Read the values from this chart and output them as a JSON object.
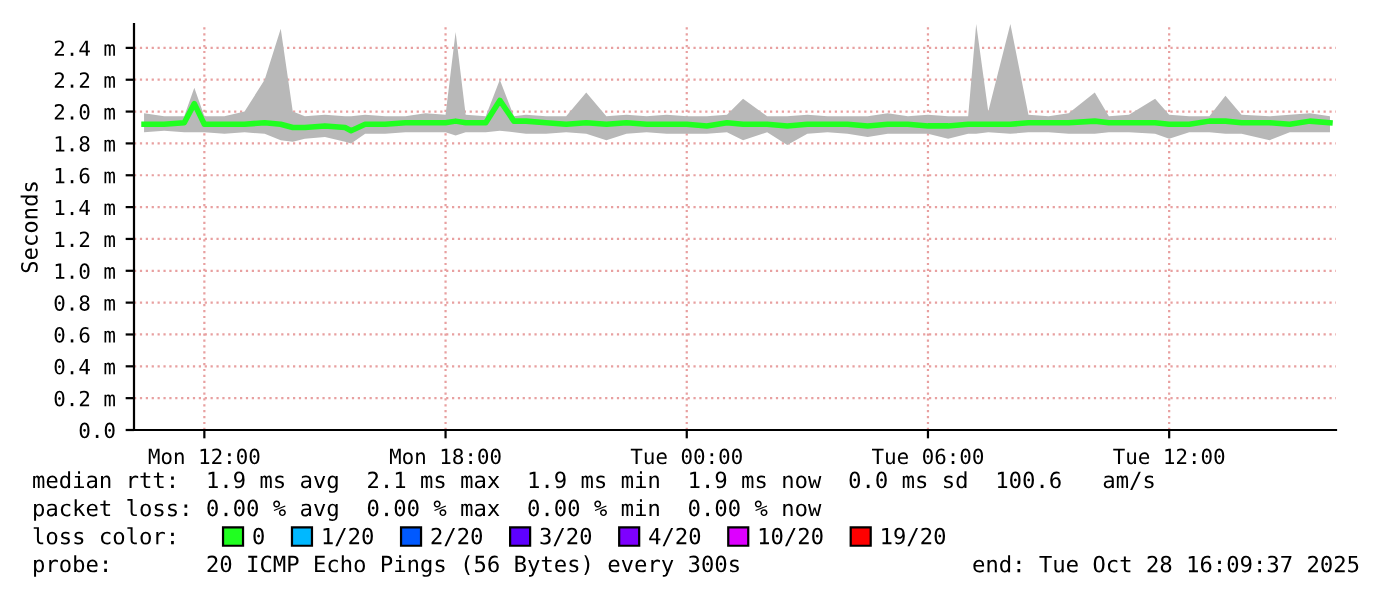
{
  "chart_data": {
    "type": "line",
    "ylabel": "Seconds",
    "x": [
      "2025-10-27T10:30",
      "2025-10-27T11:00",
      "2025-10-27T11:30",
      "2025-10-27T11:45",
      "2025-10-27T12:00",
      "2025-10-27T12:30",
      "2025-10-27T13:00",
      "2025-10-27T13:30",
      "2025-10-27T13:54",
      "2025-10-27T14:12",
      "2025-10-27T14:30",
      "2025-10-27T15:00",
      "2025-10-27T15:30",
      "2025-10-27T15:39",
      "2025-10-27T16:00",
      "2025-10-27T16:30",
      "2025-10-27T17:00",
      "2025-10-27T17:30",
      "2025-10-27T18:00",
      "2025-10-27T18:15",
      "2025-10-27T18:30",
      "2025-10-27T19:00",
      "2025-10-27T19:21",
      "2025-10-27T19:42",
      "2025-10-27T20:00",
      "2025-10-27T20:30",
      "2025-10-27T21:00",
      "2025-10-27T21:30",
      "2025-10-27T22:00",
      "2025-10-27T22:30",
      "2025-10-27T23:00",
      "2025-10-27T23:30",
      "2025-10-28T00:00",
      "2025-10-28T00:30",
      "2025-10-28T01:00",
      "2025-10-28T01:24",
      "2025-10-28T02:00",
      "2025-10-28T02:30",
      "2025-10-28T03:00",
      "2025-10-28T03:30",
      "2025-10-28T04:00",
      "2025-10-28T04:30",
      "2025-10-28T05:00",
      "2025-10-28T05:30",
      "2025-10-28T06:00",
      "2025-10-28T06:30",
      "2025-10-28T07:00",
      "2025-10-28T07:12",
      "2025-10-28T07:30",
      "2025-10-28T08:03",
      "2025-10-28T08:30",
      "2025-10-28T09:00",
      "2025-10-28T09:30",
      "2025-10-28T10:09",
      "2025-10-28T10:30",
      "2025-10-28T11:00",
      "2025-10-28T11:39",
      "2025-10-28T12:00",
      "2025-10-28T12:30",
      "2025-10-28T13:00",
      "2025-10-28T13:24",
      "2025-10-28T13:48",
      "2025-10-28T14:30",
      "2025-10-28T15:00",
      "2025-10-28T15:30",
      "2025-10-28T16:00"
    ],
    "series": [
      {
        "name": "0",
        "color": "#20ff20",
        "values": [
          1.92,
          1.92,
          1.93,
          2.05,
          1.92,
          1.92,
          1.92,
          1.93,
          1.92,
          1.9,
          1.9,
          1.91,
          1.9,
          1.88,
          1.92,
          1.92,
          1.93,
          1.93,
          1.93,
          1.94,
          1.93,
          1.93,
          2.07,
          1.94,
          1.94,
          1.93,
          1.92,
          1.93,
          1.92,
          1.93,
          1.92,
          1.92,
          1.92,
          1.91,
          1.93,
          1.92,
          1.92,
          1.91,
          1.92,
          1.92,
          1.92,
          1.91,
          1.92,
          1.92,
          1.91,
          1.91,
          1.92,
          1.92,
          1.92,
          1.92,
          1.93,
          1.93,
          1.93,
          1.94,
          1.93,
          1.93,
          1.93,
          1.92,
          1.92,
          1.94,
          1.94,
          1.93,
          1.93,
          1.92,
          1.94,
          1.93
        ],
        "lower": [
          1.87,
          1.88,
          1.87,
          1.87,
          1.87,
          1.86,
          1.87,
          1.86,
          1.82,
          1.81,
          1.83,
          1.84,
          1.81,
          1.8,
          1.86,
          1.86,
          1.87,
          1.87,
          1.87,
          1.85,
          1.87,
          1.87,
          1.88,
          1.87,
          1.86,
          1.86,
          1.87,
          1.86,
          1.82,
          1.86,
          1.87,
          1.86,
          1.86,
          1.86,
          1.87,
          1.82,
          1.87,
          1.79,
          1.86,
          1.87,
          1.86,
          1.84,
          1.86,
          1.86,
          1.86,
          1.83,
          1.86,
          1.86,
          1.87,
          1.86,
          1.87,
          1.87,
          1.86,
          1.86,
          1.87,
          1.87,
          1.86,
          1.83,
          1.87,
          1.87,
          1.86,
          1.86,
          1.82,
          1.87,
          1.87,
          1.87
        ],
        "upper": [
          1.99,
          1.97,
          1.97,
          2.15,
          1.97,
          1.97,
          2.0,
          2.2,
          2.52,
          2.0,
          1.97,
          1.98,
          1.97,
          1.97,
          1.98,
          1.97,
          1.97,
          1.99,
          1.98,
          2.5,
          1.98,
          1.97,
          2.2,
          1.97,
          1.98,
          1.97,
          1.97,
          2.12,
          1.97,
          1.98,
          1.97,
          1.98,
          1.97,
          1.97,
          1.98,
          2.08,
          1.97,
          1.97,
          1.98,
          1.97,
          1.97,
          1.97,
          1.99,
          1.97,
          1.98,
          1.97,
          1.97,
          2.55,
          2.0,
          2.55,
          1.98,
          1.97,
          1.99,
          2.12,
          1.97,
          1.98,
          2.08,
          1.98,
          1.97,
          1.97,
          2.1,
          1.98,
          1.97,
          1.98,
          1.99,
          1.97
        ]
      },
      {
        "name": "1/20",
        "color": "#00b8ff",
        "values": [
          null,
          null,
          null,
          null,
          null,
          null,
          null,
          null,
          null,
          null,
          null,
          null,
          null,
          null,
          null,
          null,
          null,
          null,
          null,
          null,
          null,
          null,
          null,
          null,
          null,
          null,
          null,
          null,
          null,
          null,
          null,
          null,
          null,
          null,
          null,
          null,
          null,
          null,
          null,
          null,
          null,
          null,
          null,
          null,
          null,
          null,
          null,
          null,
          null,
          null,
          null,
          null,
          null,
          null,
          null,
          null,
          null,
          null,
          null,
          null,
          null,
          null,
          null,
          null,
          null,
          null
        ]
      },
      {
        "name": "2/20",
        "color": "#0059ff",
        "values": [
          null,
          null,
          null,
          null,
          null,
          null,
          null,
          null,
          null,
          null,
          null,
          null,
          null,
          null,
          null,
          null,
          null,
          null,
          null,
          null,
          null,
          null,
          null,
          null,
          null,
          null,
          null,
          null,
          null,
          null,
          null,
          null,
          null,
          null,
          null,
          null,
          null,
          null,
          null,
          null,
          null,
          null,
          null,
          null,
          null,
          null,
          null,
          null,
          null,
          null,
          null,
          null,
          null,
          null,
          null,
          null,
          null,
          null,
          null,
          null,
          null,
          null,
          null,
          null,
          null,
          null
        ]
      },
      {
        "name": "3/20",
        "color": "#5e00ff",
        "values": [
          null,
          null,
          null,
          null,
          null,
          null,
          null,
          null,
          null,
          null,
          null,
          null,
          null,
          null,
          null,
          null,
          null,
          null,
          null,
          null,
          null,
          null,
          null,
          null,
          null,
          null,
          null,
          null,
          null,
          null,
          null,
          null,
          null,
          null,
          null,
          null,
          null,
          null,
          null,
          null,
          null,
          null,
          null,
          null,
          null,
          null,
          null,
          null,
          null,
          null,
          null,
          null,
          null,
          null,
          null,
          null,
          null,
          null,
          null,
          null,
          null,
          null,
          null,
          null,
          null,
          null
        ]
      },
      {
        "name": "4/20",
        "color": "#7e00ff",
        "values": [
          null,
          null,
          null,
          null,
          null,
          null,
          null,
          null,
          null,
          null,
          null,
          null,
          null,
          null,
          null,
          null,
          null,
          null,
          null,
          null,
          null,
          null,
          null,
          null,
          null,
          null,
          null,
          null,
          null,
          null,
          null,
          null,
          null,
          null,
          null,
          null,
          null,
          null,
          null,
          null,
          null,
          null,
          null,
          null,
          null,
          null,
          null,
          null,
          null,
          null,
          null,
          null,
          null,
          null,
          null,
          null,
          null,
          null,
          null,
          null,
          null,
          null,
          null,
          null,
          null,
          null
        ]
      },
      {
        "name": "10/20",
        "color": "#dd00ff",
        "values": [
          null,
          null,
          null,
          null,
          null,
          null,
          null,
          null,
          null,
          null,
          null,
          null,
          null,
          null,
          null,
          null,
          null,
          null,
          null,
          null,
          null,
          null,
          null,
          null,
          null,
          null,
          null,
          null,
          null,
          null,
          null,
          null,
          null,
          null,
          null,
          null,
          null,
          null,
          null,
          null,
          null,
          null,
          null,
          null,
          null,
          null,
          null,
          null,
          null,
          null,
          null,
          null,
          null,
          null,
          null,
          null,
          null,
          null,
          null,
          null,
          null,
          null,
          null,
          null,
          null,
          null
        ]
      },
      {
        "name": "19/20",
        "color": "#ff0000",
        "values": [
          null,
          null,
          null,
          null,
          null,
          null,
          null,
          null,
          null,
          null,
          null,
          null,
          null,
          null,
          null,
          null,
          null,
          null,
          null,
          null,
          null,
          null,
          null,
          null,
          null,
          null,
          null,
          null,
          null,
          null,
          null,
          null,
          null,
          null,
          null,
          null,
          null,
          null,
          null,
          null,
          null,
          null,
          null,
          null,
          null,
          null,
          null,
          null,
          null,
          null,
          null,
          null,
          null,
          null,
          null,
          null,
          null,
          null,
          null,
          null,
          null,
          null,
          null,
          null,
          null,
          null
        ]
      }
    ],
    "legend_title": "loss color:",
    "legend": "bottom",
    "xlim": [
      "2025-10-27T10:15",
      "2025-10-28T16:09"
    ],
    "xticks": [
      {
        "value": "2025-10-27T12:00",
        "label": "Mon 12:00"
      },
      {
        "value": "2025-10-27T18:00",
        "label": "Mon 18:00"
      },
      {
        "value": "2025-10-28T00:00",
        "label": "Tue 00:00"
      },
      {
        "value": "2025-10-28T06:00",
        "label": "Tue 06:00"
      },
      {
        "value": "2025-10-28T12:00",
        "label": "Tue 12:00"
      }
    ],
    "ylim": [
      0,
      2.55
    ],
    "yticks": [
      {
        "value": 0,
        "label": "0.0"
      },
      {
        "value": 0.2,
        "label": "0.2 m"
      },
      {
        "value": 0.4,
        "label": "0.4 m"
      },
      {
        "value": 0.6,
        "label": "0.6 m"
      },
      {
        "value": 0.8,
        "label": "0.8 m"
      },
      {
        "value": 1.0,
        "label": "1.0 m"
      },
      {
        "value": 1.2,
        "label": "1.2 m"
      },
      {
        "value": 1.4,
        "label": "1.4 m"
      },
      {
        "value": 1.6,
        "label": "1.6 m"
      },
      {
        "value": 1.8,
        "label": "1.8 m"
      },
      {
        "value": 2.0,
        "label": "2.0 m"
      },
      {
        "value": 2.2,
        "label": "2.2 m"
      },
      {
        "value": 2.4,
        "label": "2.4 m"
      }
    ],
    "grid": true,
    "annotations": [
      "median rtt:  1.9 ms avg  2.1 ms max  1.9 ms min  1.9 ms now  0.0 ms sd  100.6   am/s",
      "packet loss: 0.00 % avg  0.00 % max  0.00 % min  0.00 % now",
      "probe:       20 ICMP Echo Pings (56 Bytes) every 300s",
      "end: Tue Oct 28 16:09:37 2025"
    ]
  }
}
